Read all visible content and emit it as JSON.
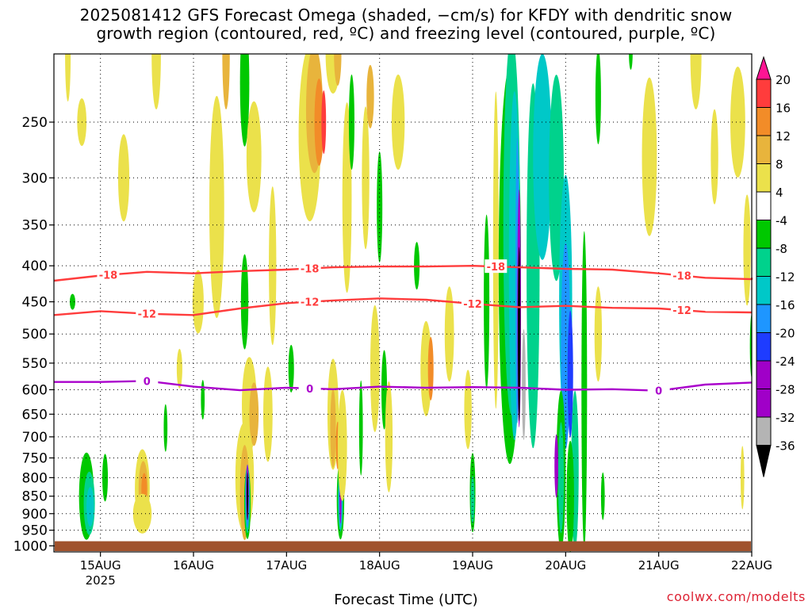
{
  "title_line1": "2025081412 GFS Forecast Omega (shaded, −cm/s) for KFDY with dendritic snow",
  "title_line2": "growth region (contoured, red, ºC) and freezing level (contoured, purple, ºC)",
  "xlabel": "Forecast Time (UTC)",
  "credit": "coolwx.com/modelts",
  "chart_data": {
    "type": "heatmap",
    "title": "2025081412 GFS Forecast Omega (shaded, −cm/s) for KFDY with dendritic snow growth region (contoured, red, ºC) and freezing level (contoured, purple, ºC)",
    "xlabel": "Forecast Time (UTC)",
    "ylabel": "",
    "x_ticks": [
      "15AUG",
      "16AUG",
      "17AUG",
      "18AUG",
      "19AUG",
      "20AUG",
      "21AUG",
      "22AUG"
    ],
    "x_year_label": "2025",
    "x_range": [
      "2025-08-14T12Z",
      "2025-08-22T00Z"
    ],
    "y_ticks": [
      250,
      300,
      350,
      400,
      450,
      500,
      550,
      600,
      650,
      700,
      750,
      800,
      850,
      900,
      950,
      1000
    ],
    "y_range": [
      200,
      1020
    ],
    "y_reversed": true,
    "grid": "dotted",
    "colorbar": {
      "labels": [
        20,
        16,
        12,
        8,
        4,
        -4,
        -8,
        -12,
        -16,
        -20,
        -24,
        -28,
        -32,
        -36
      ],
      "colors": [
        "#ff1493",
        "#ff3c3c",
        "#f28c28",
        "#e8b43c",
        "#ebe14b",
        "#ffffff",
        "#00c800",
        "#00d28c",
        "#00c8c8",
        "#1e96ff",
        "#1e3cff",
        "#a000c8",
        "#b4b4b4",
        "#000000"
      ]
    },
    "contours": [
      {
        "value": -18,
        "color": "#ff3c3c",
        "p": [
          420,
          413,
          408,
          410,
          407,
          405,
          402,
          401,
          401,
          400,
          402,
          404,
          405,
          410,
          416,
          418,
          416
        ]
      },
      {
        "value": -12,
        "color": "#ff3c3c",
        "p": [
          470,
          464,
          468,
          470,
          460,
          452,
          448,
          445,
          447,
          453,
          458,
          456,
          459,
          460,
          465,
          466,
          466
        ]
      },
      {
        "value": 0,
        "color": "#aa00cc",
        "p": [
          585,
          585,
          583,
          594,
          601,
          596,
          599,
          594,
          596,
          595,
          596,
          600,
          599,
          602,
          590,
          586,
          586
        ]
      }
    ],
    "contour_x": [
      "08-14 12Z",
      "08-15 00Z",
      "08-15 12Z",
      "08-16 00Z",
      "08-16 12Z",
      "08-17 00Z",
      "08-17 12Z",
      "08-18 00Z",
      "08-18 12Z",
      "08-19 00Z",
      "08-19 12Z",
      "08-20 00Z",
      "08-20 12Z",
      "08-21 00Z",
      "08-21 12Z",
      "08-22 00Z",
      "08-22 00Z"
    ],
    "contour_labels": [
      {
        "text": "-18",
        "at": [
          "08-15 02Z",
          "08-17 06Z",
          "08-19 06Z",
          "08-21 06Z"
        ]
      },
      {
        "text": "-12",
        "at": [
          "08-15 12Z",
          "08-17 06Z",
          "08-19 00Z",
          "08-21 06Z"
        ]
      },
      {
        "text": "0",
        "at": [
          "08-15 12Z",
          "08-17 06Z",
          "08-21 00Z"
        ]
      }
    ],
    "terrain_color": "#a0522d"
  }
}
